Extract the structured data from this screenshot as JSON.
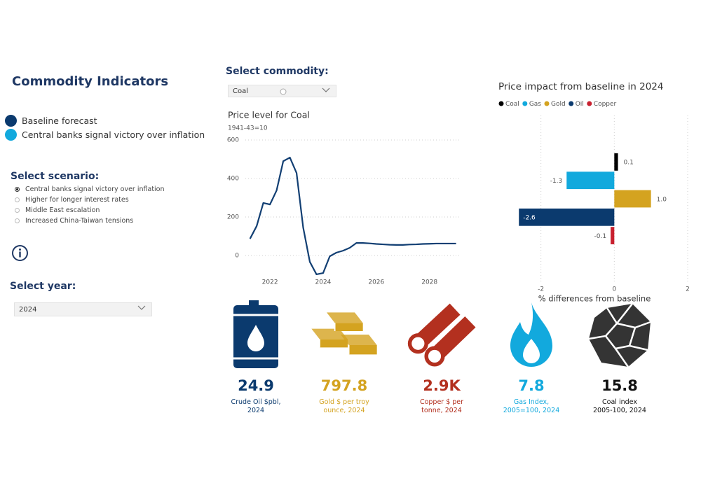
{
  "header": {
    "title": "Commodity Indicators"
  },
  "legend": [
    {
      "name": "Baseline forecast",
      "color": "#0b3a6e"
    },
    {
      "name": "Central banks signal victory over inflation",
      "color": "#12a9dd"
    }
  ],
  "scenario": {
    "label": "Select scenario:",
    "options": [
      "Central banks signal victory over inflation",
      "Higher for longer interest rates",
      "Middle East escalation",
      "Increased China-Taiwan tensions"
    ],
    "selected": 0
  },
  "year": {
    "label": "Select year:",
    "value": "2024"
  },
  "commodity": {
    "label": "Select commodity:",
    "value": "Coal"
  },
  "chart_data": [
    {
      "type": "line",
      "title": "Price level for Coal",
      "subtitle": "1941-43=10",
      "color": "#123f73",
      "x": [
        2021.25,
        2021.5,
        2021.75,
        2022,
        2022.25,
        2022.5,
        2022.75,
        2023,
        2023.25,
        2023.5,
        2023.75,
        2024,
        2024.25,
        2024.5,
        2024.75,
        2025,
        2025.25,
        2025.5,
        2025.75,
        2026,
        2026.25,
        2026.5,
        2026.75,
        2027,
        2027.25,
        2027.5,
        2027.75,
        2028,
        2028.25,
        2028.5,
        2028.75,
        2029
      ],
      "values": [
        87,
        153,
        273,
        265,
        338,
        490,
        509,
        429,
        145,
        -33,
        -98,
        -91,
        -4,
        15,
        25,
        40,
        65,
        65,
        63,
        60,
        58,
        56,
        55,
        55,
        57,
        58,
        60,
        61,
        62,
        62,
        62,
        62
      ],
      "xlim": [
        2020.6,
        2029.3
      ],
      "xticks": [
        2022,
        2024,
        2026,
        2028
      ],
      "ylim": [
        -110,
        620
      ],
      "yticks": [
        0,
        200,
        400,
        600
      ],
      "grid": true
    },
    {
      "type": "bar",
      "orientation": "horizontal",
      "title": "Price impact from baseline in 2024",
      "categories": [
        "Coal",
        "Gas",
        "Gold",
        "Oil",
        "Copper"
      ],
      "colors": [
        "#000000",
        "#12a9dd",
        "#d4a320",
        "#0b3a6e",
        "#c8202f"
      ],
      "values": [
        0.1,
        -1.3,
        1.0,
        -2.6,
        -0.1
      ],
      "value_labels": [
        "0.1",
        "-1.3",
        "1.0",
        "-2.6",
        "-0.1"
      ],
      "xlabel": "% differences from baseline",
      "xlim": [
        -2.7,
        2
      ],
      "xticks": [
        -2,
        0,
        2
      ],
      "grid": true
    }
  ],
  "cards": [
    {
      "value": "24.9",
      "label": [
        "Crude Oil $pbl,",
        "2024"
      ],
      "color": "#0b3a6e"
    },
    {
      "value": "797.8",
      "label": [
        "Gold $ per troy",
        "ounce, 2024"
      ],
      "color": "#d4a320"
    },
    {
      "value": "2.9K",
      "label": [
        "Copper $ per",
        "tonne, 2024"
      ],
      "color": "#b3301f"
    },
    {
      "value": "7.8",
      "label": [
        "Gas Index,",
        "2005=100, 2024"
      ],
      "color": "#12a9dd"
    },
    {
      "value": "15.8",
      "label": [
        "Coal index",
        "2005-100, 2024"
      ],
      "color": "#111111"
    }
  ]
}
